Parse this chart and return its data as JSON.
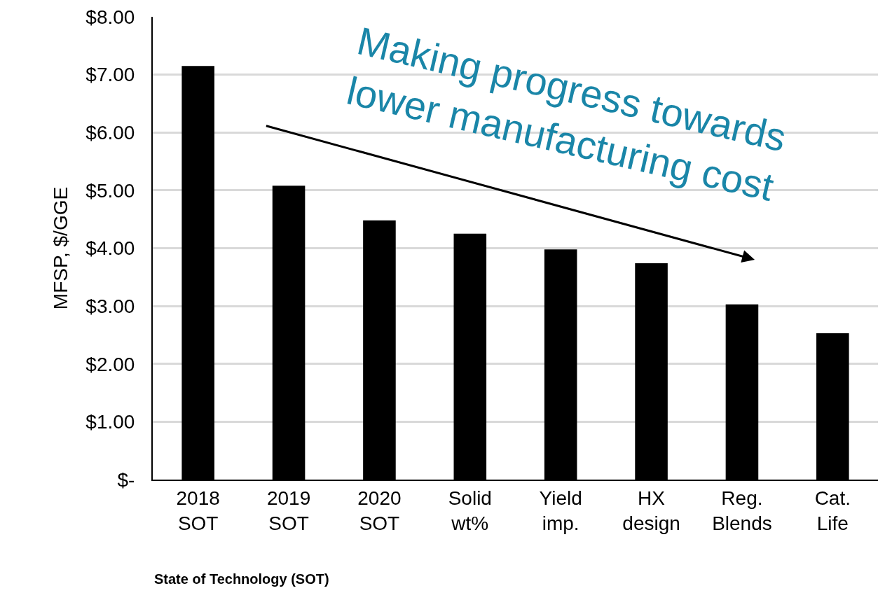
{
  "chart_data": {
    "type": "bar",
    "xlabel": "State of Technology (SOT)",
    "ylabel": "MFSP, $/GGE",
    "categories": [
      "2018 SOT",
      "2019 SOT",
      "2020 SOT",
      "Solid wt%",
      "Yield imp.",
      "HX design",
      "Reg. Blends",
      "Cat. Life"
    ],
    "values": [
      7.15,
      5.08,
      4.48,
      4.25,
      3.98,
      3.74,
      3.03,
      2.53
    ],
    "color": "#000000",
    "ylim": [
      0,
      8
    ],
    "yticks": [
      {
        "value": 0,
        "label": "$-"
      },
      {
        "value": 1,
        "label": "$1.00"
      },
      {
        "value": 2,
        "label": "$2.00"
      },
      {
        "value": 3,
        "label": "$3.00"
      },
      {
        "value": 4,
        "label": "$4.00"
      },
      {
        "value": 5,
        "label": "$5.00"
      },
      {
        "value": 6,
        "label": "$6.00"
      },
      {
        "value": 7,
        "label": "$7.00"
      },
      {
        "value": 8,
        "label": "$8.00"
      }
    ],
    "grid": "y",
    "legend": false,
    "annotations": [
      "Making progress towards lower manufacturing cost"
    ]
  }
}
